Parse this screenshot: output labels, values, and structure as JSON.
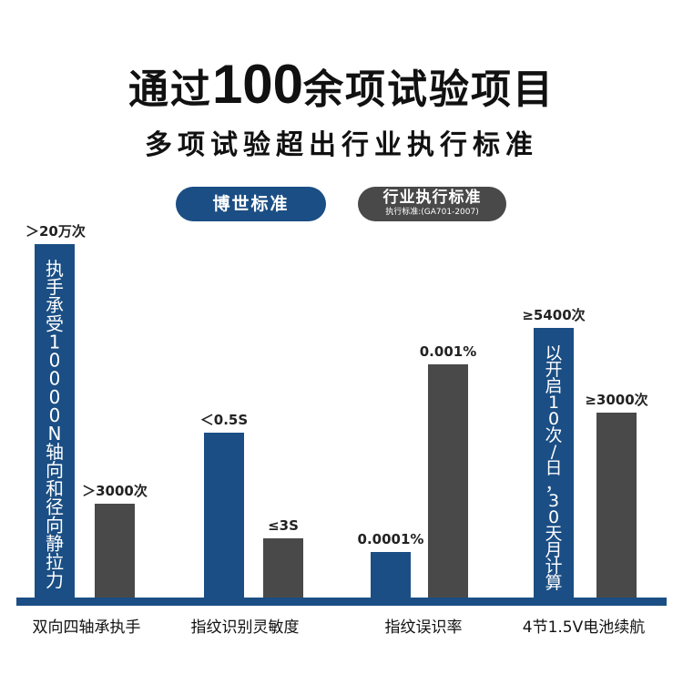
{
  "header": {
    "title_a": "通过",
    "title_b": "100",
    "title_c": "余项试验项目",
    "subtitle": "多项试验超出行业执行标准"
  },
  "legend": {
    "blue_label": "博世标准",
    "gray_label": "行业执行标准",
    "gray_sub": "执行标准:(GA701-2007)"
  },
  "colors": {
    "blue": "#1b4e84",
    "gray": "#494949",
    "baseline": "#1b4e84"
  },
  "chart_data": {
    "type": "bar",
    "categories": [
      "双向四轴承执手",
      "指纹识别灵敏度",
      "指纹误识率",
      "4节1.5V电池续航"
    ],
    "series": [
      {
        "name": "博世标准",
        "color": "#1b4e84",
        "labels": [
          "＞20万次",
          "＜0.5S",
          "0.0001%",
          "≥5400次"
        ]
      },
      {
        "name": "行业执行标准",
        "color": "#494949",
        "labels": [
          "＞3000次",
          "≤3S",
          "0.001%",
          "≥3000次"
        ]
      }
    ],
    "bar_texts": [
      "执手承受10000N轴向和径向静拉力",
      "",
      "",
      "以开启10次/日，30天月计算"
    ]
  }
}
